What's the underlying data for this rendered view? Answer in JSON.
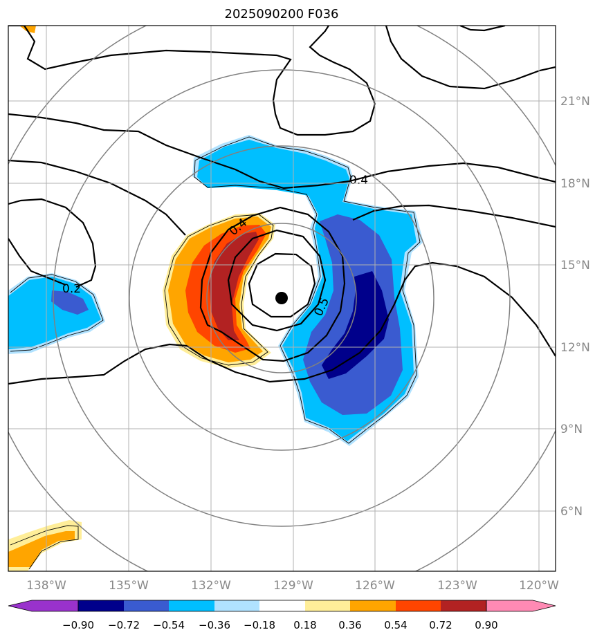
{
  "title": "2025090200 F036",
  "latitude_labels": [
    "21°N",
    "18°N",
    "15°N",
    "12°N",
    "9°N",
    "6°N"
  ],
  "longitude_labels": [
    "138°W",
    "135°W",
    "132°W",
    "129°W",
    "126°W",
    "123°W",
    "120°W"
  ],
  "contour_labels": [
    "0.4",
    "0.4",
    "0.5",
    "0.2"
  ],
  "colorbar": {
    "tick_labels": [
      "−0.90",
      "−0.72",
      "−0.54",
      "−0.36",
      "−0.18",
      "0.18",
      "0.36",
      "0.54",
      "0.72",
      "0.90"
    ],
    "colors": [
      "#9932cc",
      "#00008b",
      "#3a5bd0",
      "#00bfff",
      "#b0e2ff",
      "#ffffff",
      "#ffee99",
      "#ffa500",
      "#ff4500",
      "#b22222",
      "#ff8ab4"
    ]
  },
  "storm_center": {
    "lon": -129.4,
    "lat": 13.7
  },
  "colors": {
    "dark_blue": "#00008b",
    "blue": "#3a5bd0",
    "sky": "#00bfff",
    "light_blue": "#b0e2ff",
    "yellow": "#ffee99",
    "orange": "#ffa500",
    "red_orange": "#ff4500",
    "dark_red": "#b22222",
    "grid": "#b0b0b0",
    "rings": "#808080"
  }
}
